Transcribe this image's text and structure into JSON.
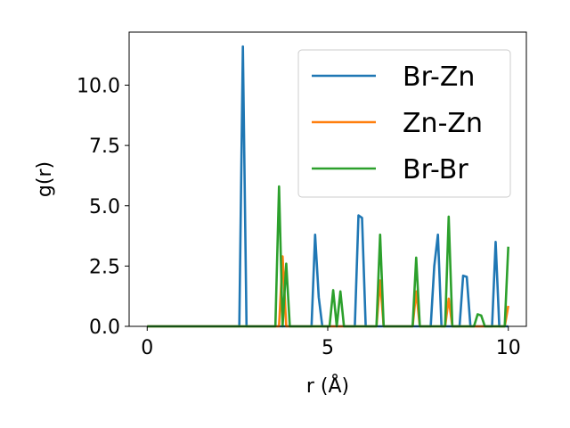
{
  "chart_data": {
    "type": "line",
    "xlabel": "r (Å)",
    "ylabel": "g(r)",
    "xlim": [
      -0.5,
      10.5
    ],
    "ylim": [
      0,
      12.2
    ],
    "x_ticks": [
      0,
      5,
      10
    ],
    "x_tick_labels": [
      "0",
      "5",
      "10"
    ],
    "y_ticks": [
      0,
      2.5,
      5,
      7.5,
      10
    ],
    "y_tick_labels": [
      "0.0",
      "2.5",
      "5.0",
      "7.5",
      "10.0"
    ],
    "grid": false,
    "legend_position": "top-right",
    "series": [
      {
        "name": "Br-Zn",
        "color": "#1f77b4",
        "x": [
          0,
          2.5,
          2.55,
          2.65,
          2.75,
          2.85,
          4.45,
          4.55,
          4.65,
          4.75,
          4.85,
          5.75,
          5.85,
          5.95,
          6.05,
          7.85,
          7.95,
          8.05,
          8.15,
          8.25,
          8.55,
          8.65,
          8.75,
          8.85,
          8.95,
          9.55,
          9.65,
          9.75,
          10
        ],
        "y": [
          0,
          0,
          0,
          11.6,
          0,
          0,
          0,
          0,
          3.8,
          1.2,
          0,
          0,
          4.6,
          4.5,
          0,
          0,
          2.5,
          3.8,
          0,
          0,
          0,
          0,
          2.1,
          2.05,
          0,
          0,
          3.5,
          0,
          0
        ]
      },
      {
        "name": "Zn-Zn",
        "color": "#ff7f0e",
        "x": [
          0,
          3.55,
          3.65,
          3.75,
          3.85,
          6.35,
          6.45,
          6.55,
          7.35,
          7.45,
          7.55,
          8.25,
          8.35,
          8.45,
          9.9,
          10
        ],
        "y": [
          0,
          0,
          0,
          2.9,
          0,
          0,
          1.9,
          0,
          0,
          1.45,
          0,
          0,
          1.15,
          0,
          0.0,
          0.85
        ]
      },
      {
        "name": "Br-Br",
        "color": "#2ca02c",
        "x": [
          0,
          3.45,
          3.55,
          3.65,
          3.75,
          3.85,
          3.95,
          4.05,
          5.05,
          5.15,
          5.25,
          5.35,
          5.45,
          6.35,
          6.45,
          6.55,
          7.35,
          7.45,
          7.55,
          8.25,
          8.35,
          8.45,
          9.05,
          9.15,
          9.25,
          9.35,
          9.45,
          9.9,
          10
        ],
        "y": [
          0,
          0,
          0,
          5.8,
          0,
          2.6,
          0,
          0,
          0,
          1.5,
          0,
          1.45,
          0,
          0,
          3.8,
          0,
          0,
          2.85,
          0,
          0,
          4.55,
          0,
          0,
          0.5,
          0.45,
          0,
          0,
          0,
          3.3
        ]
      }
    ]
  }
}
